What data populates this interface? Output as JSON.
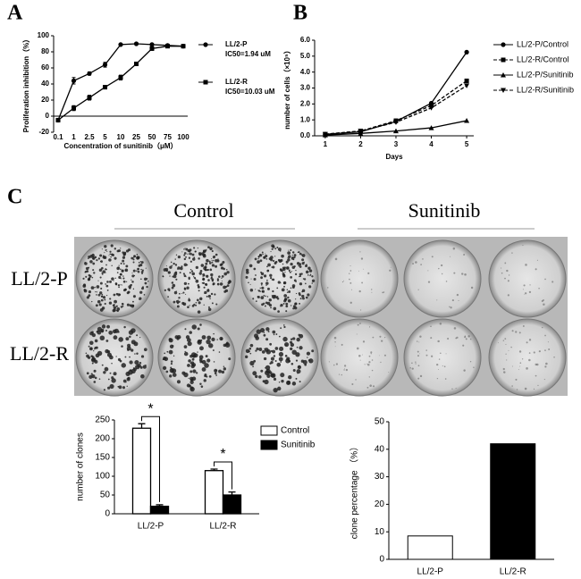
{
  "panel_labels": [
    "A",
    "B",
    "C"
  ],
  "photo": {
    "column_labels": [
      "Control",
      "Sunitinib"
    ],
    "row_labels": [
      "LL/2-P",
      "LL/2-R"
    ]
  },
  "chart_data": [
    {
      "type": "line",
      "x_label": "Concentration of sunitinib（μM）",
      "y_label": "Proliferation inhibition（%）",
      "categories": [
        "0.1",
        "1",
        "2.5",
        "5",
        "10",
        "25",
        "50",
        "75",
        "100"
      ],
      "ylim": [
        -20,
        100
      ],
      "yticks": [
        -20,
        0,
        20,
        40,
        60,
        80,
        100
      ],
      "series": [
        {
          "name": "LL/2-P",
          "note": "IC50=1.94 uM",
          "color": "#000",
          "marker": "circle",
          "dashed": false,
          "values": [
            -5,
            44,
            53,
            64,
            89,
            90,
            89,
            88,
            87
          ],
          "errors": [
            2,
            4,
            2,
            3,
            1,
            1,
            1,
            1,
            1
          ]
        },
        {
          "name": "LL/2-R",
          "note": "IC50=10.03 uM",
          "color": "#000",
          "marker": "square",
          "dashed": false,
          "values": [
            -5,
            10,
            23,
            36,
            48,
            65,
            84,
            87,
            87
          ],
          "errors": [
            2,
            3,
            3,
            2,
            3,
            2,
            2,
            2,
            2
          ]
        }
      ]
    },
    {
      "type": "line",
      "x_label": "Days",
      "y_label": "number of cells（×10⁵）",
      "x": [
        1,
        2,
        3,
        4,
        5
      ],
      "xlim": [
        0.7,
        5.2
      ],
      "xticks": [
        1,
        2,
        3,
        4,
        5
      ],
      "ylim": [
        0,
        6
      ],
      "yticks": [
        {
          "value": 0,
          "label": "0.0"
        },
        {
          "value": 1,
          "label": "1.0"
        },
        {
          "value": 2,
          "label": "2.0"
        },
        {
          "value": 3,
          "label": "3.0"
        },
        {
          "value": 4,
          "label": "4.0"
        },
        {
          "value": 5,
          "label": "5.0"
        },
        {
          "value": 6,
          "label": "6.0"
        }
      ],
      "series": [
        {
          "name": "LL/2-P/Control",
          "color": "#000",
          "marker": "circle",
          "dashed": false,
          "values": [
            0.1,
            0.25,
            0.9,
            2.05,
            5.25
          ]
        },
        {
          "name": "LL/2-R/Control",
          "color": "#000",
          "marker": "square",
          "dashed": true,
          "values": [
            0.1,
            0.3,
            0.95,
            1.9,
            3.45
          ]
        },
        {
          "name": "LL/2-P/Sunitinib",
          "color": "#000",
          "marker": "triangle",
          "dashed": false,
          "values": [
            0.05,
            0.15,
            0.3,
            0.5,
            0.95
          ]
        },
        {
          "name": "LL/2-R/Sunitinib",
          "color": "#000",
          "marker": "triangle-down",
          "dashed": true,
          "values": [
            0.1,
            0.3,
            0.85,
            1.75,
            3.15
          ]
        }
      ]
    },
    {
      "type": "bar",
      "y_label": "number of clones",
      "categories": [
        "LL/2-P",
        "LL/2-R"
      ],
      "ylim": [
        0,
        250
      ],
      "yticks": [
        0,
        50,
        100,
        150,
        200,
        250
      ],
      "annotations": [
        "*",
        "*"
      ],
      "series": [
        {
          "name": "Control",
          "color": "#fff",
          "values": [
            228,
            115
          ],
          "errors": [
            12,
            4
          ]
        },
        {
          "name": "Sunitinib",
          "color": "#000",
          "values": [
            20,
            50
          ],
          "errors": [
            4,
            8
          ]
        }
      ]
    },
    {
      "type": "bar",
      "y_label": "clone percentage （%）",
      "categories": [
        "LL/2-P",
        "LL/2-R"
      ],
      "values": [
        8.5,
        42
      ],
      "colors": [
        "#fff",
        "#000"
      ],
      "ylim": [
        0,
        50
      ],
      "yticks": [
        0,
        10,
        20,
        30,
        40,
        50
      ]
    }
  ]
}
